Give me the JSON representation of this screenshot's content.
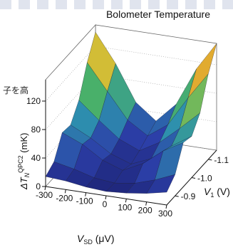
{
  "page": {
    "background_fragment": "子を高"
  },
  "chart_data": {
    "type": "surface3d",
    "title": "Bolometer Temperature",
    "xlabel_main": "V",
    "xlabel_sub": "SD",
    "xlabel_unit": " (μV)",
    "ylabel_main": "V",
    "ylabel_sub": "1",
    "ylabel_unit": " (V)",
    "zlabel_prefix": "ΔT",
    "zlabel_sub": "N",
    "zlabel_sup": "QPC2",
    "zlabel_unit": " (mK)",
    "x_ticks": [
      "-300",
      "-200",
      "-100",
      "0",
      "100",
      "200",
      "300"
    ],
    "y_ticks": [
      "-0.9",
      "-1.0",
      "-1.1"
    ],
    "z_ticks": [
      "0",
      "40",
      "80",
      "120"
    ],
    "xlim": [
      -300,
      300
    ],
    "ylim": [
      -0.85,
      -1.15
    ],
    "zlim": [
      0,
      150
    ],
    "x": [
      -300,
      -200,
      -100,
      0,
      100,
      200,
      300
    ],
    "y": [
      -0.85,
      -0.9,
      -0.95,
      -1.0,
      -1.05,
      -1.1,
      -1.15
    ],
    "z": [
      [
        14,
        12,
        8,
        6,
        8,
        12,
        18
      ],
      [
        22,
        16,
        8,
        5,
        9,
        18,
        30
      ],
      [
        50,
        38,
        20,
        10,
        24,
        46,
        62
      ],
      [
        48,
        34,
        16,
        6,
        18,
        40,
        58
      ],
      [
        70,
        46,
        24,
        12,
        28,
        52,
        78
      ],
      [
        110,
        74,
        38,
        20,
        40,
        82,
        120
      ],
      [
        140,
        100,
        50,
        28,
        56,
        110,
        150
      ]
    ],
    "colormap": [
      "#1b1f6e",
      "#2c3fa8",
      "#2d8fae",
      "#49b06a",
      "#c8c83a",
      "#f09a2a",
      "#d62020"
    ],
    "grid": true,
    "legend": "none"
  }
}
